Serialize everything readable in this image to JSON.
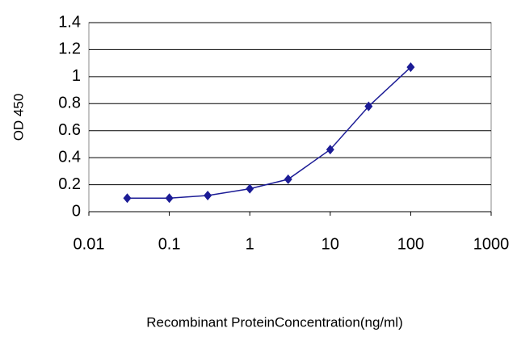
{
  "chart_data": {
    "type": "line",
    "x_label": "Recombinant ProteinConcentration(ng/ml)",
    "y_label": "OD 450",
    "x_scale": "log",
    "xlim": [
      0.01,
      1000
    ],
    "xticks": [
      0.01,
      0.1,
      1,
      10,
      100,
      1000
    ],
    "ylim": [
      0,
      1.4
    ],
    "yticks": [
      0,
      0.2,
      0.4,
      0.6,
      0.8,
      1,
      1.2,
      1.4
    ],
    "grid": true,
    "x": [
      0.03,
      0.1,
      0.3,
      1,
      3,
      10,
      30,
      100
    ],
    "series": [
      {
        "color": "#1c1c96",
        "values": [
          0.1,
          0.1,
          0.12,
          0.17,
          0.24,
          0.46,
          0.78,
          1.07
        ]
      }
    ]
  }
}
